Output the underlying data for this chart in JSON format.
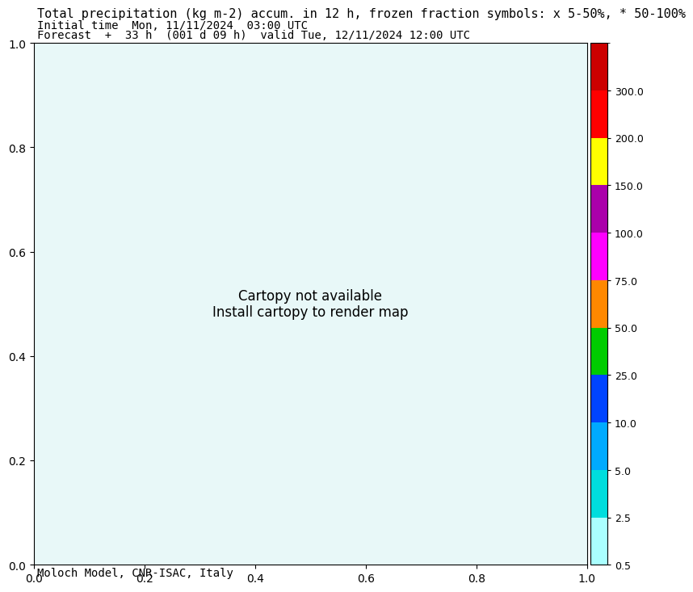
{
  "title_line1": "Total precipitation (kg m-2) accum. in 12 h, frozen fraction symbols: x 5-50%, * 50-100%",
  "title_line2": "Initial time  Mon, 11/11/2024  03:00 UTC",
  "title_line3": "Forecast  +  33 h  (001 d 09 h)  valid Tue, 12/11/2024 12:00 UTC",
  "footer": "Moloch Model, CNR-ISAC, Italy",
  "colorbar_levels": [
    0.5,
    2.5,
    5.0,
    10.0,
    25.0,
    50.0,
    75.0,
    100.0,
    150.0,
    200.0,
    300.0
  ],
  "colorbar_colors": [
    "#aaffff",
    "#00dddd",
    "#00aaff",
    "#0044ff",
    "#00cc00",
    "#ff8800",
    "#ff00ff",
    "#aa00aa",
    "#ffff00",
    "#ff0000",
    "#cc0000"
  ],
  "colorbar_label_values": [
    "0.5",
    "2.5",
    "5.0",
    "10.0",
    "25.0",
    "50.0",
    "75.0",
    "100.0",
    "150.0",
    "200.0",
    "300.0"
  ],
  "background_color": "#ffffff",
  "map_background": "#ffffff",
  "title_fontsize": 11,
  "subtitle_fontsize": 10,
  "footer_fontsize": 10
}
